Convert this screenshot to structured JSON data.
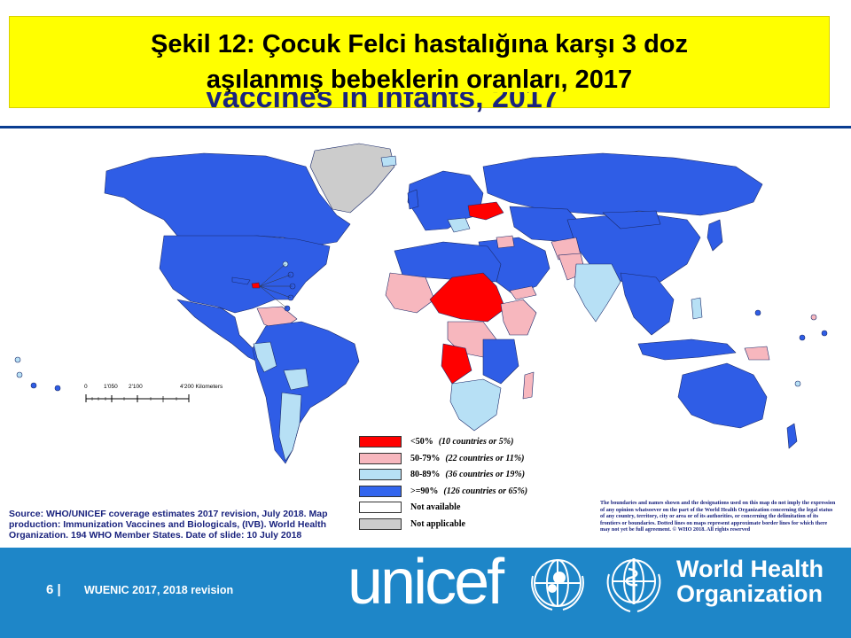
{
  "title": "Şekil 12: Çocuk Felci hastalığına karşı 3 doz aşılanmış bebeklerin oranları, 2017",
  "background_title": "Vaccines in Infants, 2017",
  "legend": {
    "items": [
      {
        "label": "<50%",
        "note": "(10 countries or 5%)",
        "color": "#ff0000"
      },
      {
        "label": "50-79%",
        "note": "(22 countries or 11%)",
        "color": "#f7b7be"
      },
      {
        "label": "80-89%",
        "note": "(36 countries or 19%)",
        "color": "#b7e0f5"
      },
      {
        "label": ">=90%",
        "note": "(126 countries or 65%)",
        "color": "#3366ee"
      },
      {
        "label": "Not available",
        "note": "",
        "color": "#ffffff"
      },
      {
        "label": "Not applicable",
        "note": "",
        "color": "#cccccc"
      }
    ]
  },
  "scale": {
    "labels": [
      "0",
      "1'050",
      "2'100",
      "4'200 Kilometers"
    ],
    "values": [
      0,
      1050,
      2100,
      4200
    ]
  },
  "source": "Source: WHO/UNICEF coverage estimates 2017 revision, July 2018. Map production: Immunization Vaccines and Biologicals, (IVB). World Health Organization. 194 WHO Member States. Date of slide: 10 July 2018",
  "disclaimer": "The boundaries and names shown and the designations used on this map do not imply the expression of any opinion whatsoever on the part of the World Health Organization concerning the legal status of any country, territory, city or area or of its authorities, or concerning the delimitation of its frontiers or boundaries. Dotted lines on maps represent approximate border lines for which there may not yet be full agreement. © WHO 2018. All rights reserved",
  "footer": {
    "page_number": "6 |",
    "text": "WUENIC 2017, 2018 revision",
    "unicef_logo": "unicef",
    "who_logo_line1": "World Health",
    "who_logo_line2": "Organization"
  },
  "colors": {
    "footer_bg": "#1e86c8",
    "title_bg": "#ffff00",
    "map_high": "#2f5de6",
    "map_mid": "#b7e0f5",
    "map_low": "#f7b7be",
    "map_lowest": "#ff0000"
  }
}
